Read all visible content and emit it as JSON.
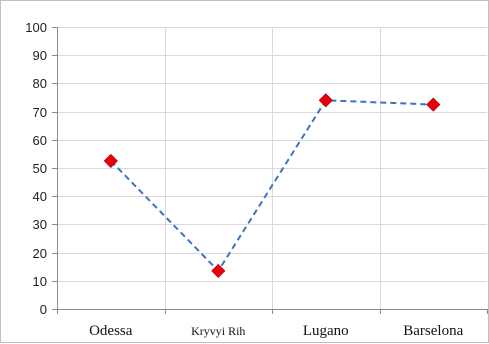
{
  "chart_data": {
    "type": "line",
    "title": "",
    "xlabel": "",
    "ylabel": "",
    "categories": [
      "Odessa",
      "Kryvyi Rih",
      "Lugano",
      "Barselona"
    ],
    "series": [
      {
        "values": [
          52.5,
          13.5,
          74,
          72.5
        ],
        "color": "#3b72c4",
        "marker_color": "#e8000b",
        "line_style": "dashed",
        "marker": "diamond"
      }
    ],
    "ylim": [
      0,
      100
    ],
    "yticks": [
      0,
      10,
      20,
      30,
      40,
      50,
      60,
      70,
      80,
      90,
      100
    ],
    "grid": {
      "horizontal": true,
      "vertical": true
    },
    "legend": "none"
  }
}
